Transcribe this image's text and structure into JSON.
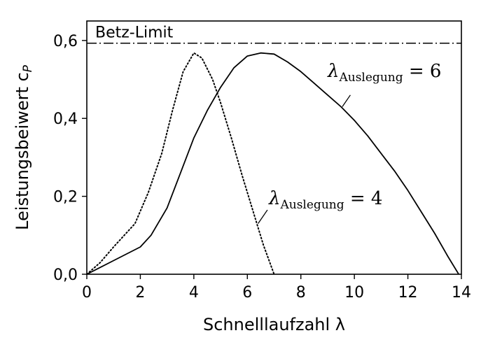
{
  "chart_data": {
    "type": "line",
    "title": "",
    "xlabel": "Schnelllaufzahl λ",
    "ylabel": "Leistungsbeiwert c",
    "ylabel_sub": "P",
    "xlim": [
      0,
      14
    ],
    "ylim": [
      0,
      0.65
    ],
    "x_ticks": [
      0,
      2,
      4,
      6,
      8,
      10,
      12,
      14
    ],
    "x_tick_labels": [
      "0",
      "2",
      "4",
      "6",
      "8",
      "10",
      "12",
      "14"
    ],
    "y_ticks": [
      0,
      0.2,
      0.4,
      0.6
    ],
    "y_tick_labels": [
      "0,0",
      "0,2",
      "0,4",
      "0,6"
    ],
    "grid": false,
    "betz_limit": {
      "value": 0.593,
      "label": "Betz-Limit"
    },
    "series": [
      {
        "annotation_main": "λ",
        "annotation_sub": "Auslegung",
        "annotation_eq": " = 6",
        "style": "solid",
        "x": [
          0,
          1.0,
          2.0,
          2.4,
          3.0,
          3.5,
          4.0,
          4.5,
          5.0,
          5.5,
          6.0,
          6.5,
          7.0,
          7.5,
          8.0,
          8.5,
          9.0,
          9.5,
          10.0,
          10.5,
          11.0,
          11.5,
          12.0,
          12.5,
          13.0,
          13.5,
          13.9
        ],
        "y": [
          0,
          0.035,
          0.07,
          0.1,
          0.17,
          0.26,
          0.35,
          0.42,
          0.48,
          0.53,
          0.56,
          0.568,
          0.565,
          0.545,
          0.52,
          0.49,
          0.46,
          0.43,
          0.395,
          0.355,
          0.31,
          0.265,
          0.215,
          0.16,
          0.105,
          0.045,
          0.0
        ]
      },
      {
        "annotation_main": "λ",
        "annotation_sub": "Auslegung",
        "annotation_eq": " = 4",
        "style": "dotted",
        "x": [
          0,
          0.5,
          1.0,
          1.8,
          2.3,
          2.8,
          3.2,
          3.6,
          4.0,
          4.3,
          4.7,
          5.0,
          5.4,
          5.8,
          6.2,
          6.6,
          7.0
        ],
        "y": [
          0,
          0.03,
          0.07,
          0.13,
          0.21,
          0.31,
          0.42,
          0.52,
          0.568,
          0.555,
          0.5,
          0.44,
          0.35,
          0.255,
          0.165,
          0.075,
          0.0
        ]
      }
    ]
  }
}
